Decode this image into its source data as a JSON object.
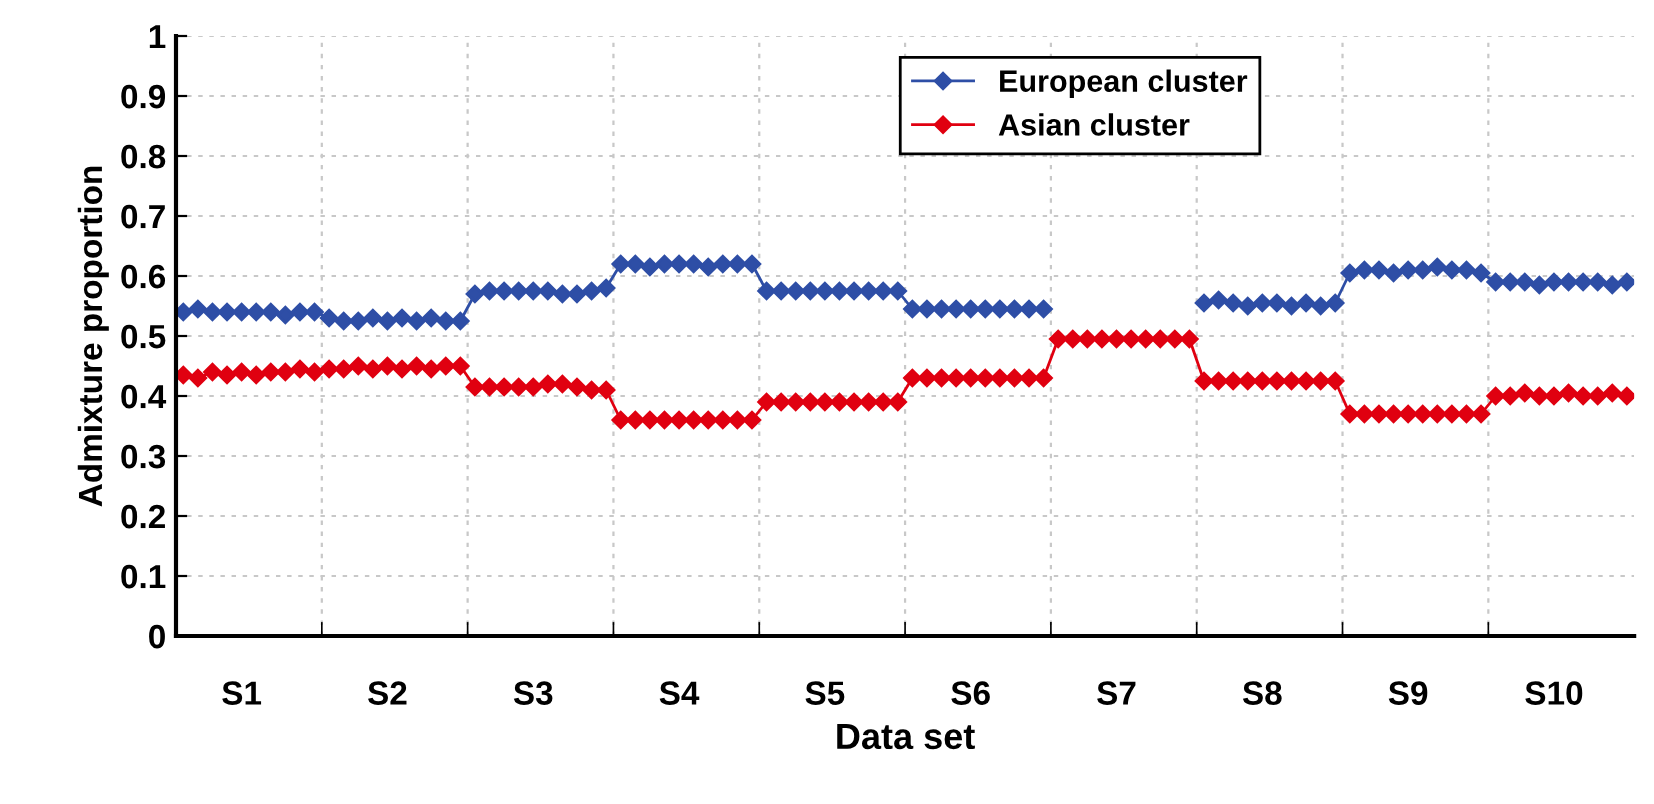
{
  "chart_data": {
    "type": "line",
    "xlabel": "Data set",
    "ylabel": "Admixture proportion",
    "categories": [
      null,
      null,
      null,
      null,
      "S1",
      null,
      null,
      null,
      null,
      null,
      null,
      null,
      null,
      null,
      "S2",
      null,
      null,
      null,
      null,
      null,
      null,
      null,
      null,
      null,
      "S3",
      null,
      null,
      null,
      null,
      null,
      null,
      null,
      null,
      null,
      "S4",
      null,
      null,
      null,
      null,
      null,
      null,
      null,
      null,
      null,
      "S5",
      null,
      null,
      null,
      null,
      null,
      null,
      null,
      null,
      null,
      "S6",
      null,
      null,
      null,
      null,
      null,
      null,
      null,
      null,
      null,
      "S7",
      null,
      null,
      null,
      null,
      null,
      null,
      null,
      null,
      null,
      "S8",
      null,
      null,
      null,
      null,
      null,
      null,
      null,
      null,
      null,
      "S9",
      null,
      null,
      null,
      null,
      null,
      null,
      null,
      null,
      null,
      "S10",
      null,
      null,
      null,
      null,
      null
    ],
    "series": [
      {
        "name": "European cluster",
        "color": "#2e4ea6",
        "values": [
          0.54,
          0.545,
          0.54,
          0.54,
          0.54,
          0.54,
          0.54,
          0.535,
          0.54,
          0.54,
          0.53,
          0.525,
          0.525,
          0.53,
          0.525,
          0.53,
          0.525,
          0.53,
          0.525,
          0.525,
          0.57,
          0.575,
          0.575,
          0.575,
          0.575,
          0.575,
          0.57,
          0.57,
          0.575,
          0.58,
          0.62,
          0.62,
          0.615,
          0.62,
          0.62,
          0.62,
          0.615,
          0.62,
          0.62,
          0.62,
          0.575,
          0.575,
          0.575,
          0.575,
          0.575,
          0.575,
          0.575,
          0.575,
          0.575,
          0.575,
          0.545,
          0.545,
          0.545,
          0.545,
          0.545,
          0.545,
          0.545,
          0.545,
          0.545,
          0.545,
          null,
          null,
          null,
          null,
          null,
          null,
          null,
          null,
          null,
          null,
          0.555,
          0.56,
          0.555,
          0.55,
          0.555,
          0.555,
          0.55,
          0.555,
          0.55,
          0.555,
          0.605,
          0.61,
          0.61,
          0.605,
          0.61,
          0.61,
          0.615,
          0.61,
          0.61,
          0.605,
          0.59,
          0.59,
          0.59,
          0.585,
          0.59,
          0.59,
          0.59,
          0.59,
          0.585,
          0.59
        ]
      },
      {
        "name": "Asian cluster",
        "color": "#e00010",
        "values": [
          0.435,
          0.43,
          0.44,
          0.435,
          0.44,
          0.435,
          0.44,
          0.44,
          0.445,
          0.44,
          0.445,
          0.445,
          0.45,
          0.445,
          0.45,
          0.445,
          0.45,
          0.445,
          0.45,
          0.45,
          0.415,
          0.415,
          0.415,
          0.415,
          0.415,
          0.42,
          0.42,
          0.415,
          0.41,
          0.41,
          0.36,
          0.36,
          0.36,
          0.36,
          0.36,
          0.36,
          0.36,
          0.36,
          0.36,
          0.36,
          0.39,
          0.39,
          0.39,
          0.39,
          0.39,
          0.39,
          0.39,
          0.39,
          0.39,
          0.39,
          0.43,
          0.43,
          0.43,
          0.43,
          0.43,
          0.43,
          0.43,
          0.43,
          0.43,
          0.43,
          0.495,
          0.495,
          0.495,
          0.495,
          0.495,
          0.495,
          0.495,
          0.495,
          0.495,
          0.495,
          0.425,
          0.425,
          0.425,
          0.425,
          0.425,
          0.425,
          0.425,
          0.425,
          0.425,
          0.425,
          0.37,
          0.37,
          0.37,
          0.37,
          0.37,
          0.37,
          0.37,
          0.37,
          0.37,
          0.37,
          0.4,
          0.4,
          0.405,
          0.4,
          0.4,
          0.405,
          0.4,
          0.4,
          0.405,
          0.4
        ]
      }
    ],
    "ylim": [
      0,
      1
    ],
    "yticks": [
      0,
      0.1,
      0.2,
      0.3,
      0.4,
      0.5,
      0.6,
      0.7,
      0.8,
      0.9,
      1
    ],
    "grid": true,
    "legend": "top",
    "marker": "diamond",
    "line_style": "solid"
  }
}
